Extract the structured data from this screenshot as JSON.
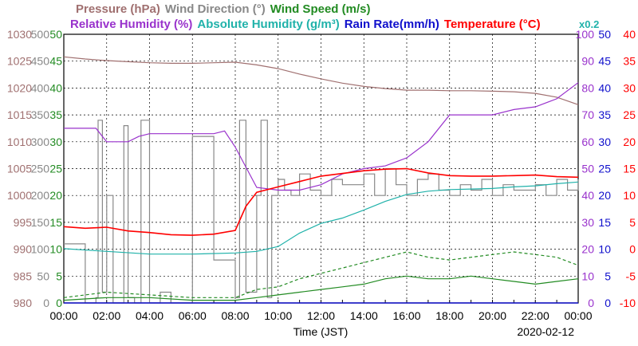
{
  "chart_data": {
    "type": "line",
    "date": "2020-02-12",
    "xlabel": "Time (JST)",
    "x_ticks": [
      "00:00",
      "02:00",
      "04:00",
      "06:00",
      "08:00",
      "10:00",
      "12:00",
      "14:00",
      "16:00",
      "18:00",
      "20:00",
      "22:00",
      "00:00"
    ],
    "scale_note": "x0.2",
    "axes": [
      {
        "name": "Pressure (hPa)",
        "color": "#a07070",
        "ticks": [
          "1030",
          "1025",
          "1020",
          "1015",
          "1010",
          "1005",
          "1000",
          "995",
          "990",
          "985",
          "980"
        ],
        "range": [
          980,
          1030
        ]
      },
      {
        "name": "Wind Direction (°)",
        "color": "#888888",
        "ticks": [
          "500",
          "450",
          "400",
          "350",
          "300",
          "250",
          "200",
          "150",
          "100",
          "50",
          "0"
        ],
        "range": [
          0,
          500
        ]
      },
      {
        "name": "Wind Speed (m/s)",
        "color": "#228b22",
        "ticks": [
          "50",
          "45",
          "40",
          "35",
          "30",
          "25",
          "20",
          "15",
          "10",
          "5",
          "0"
        ],
        "range": [
          0,
          50
        ]
      },
      {
        "name": "Relative Humidity (%)",
        "color": "#9932cc",
        "ticks": [
          "100",
          "90",
          "80",
          "70",
          "60",
          "50",
          "40",
          "30",
          "20",
          "10",
          "0"
        ],
        "range": [
          0,
          100
        ]
      },
      {
        "name": "Rain Rate(mm/h)",
        "color": "#1010cc",
        "ticks": [
          "50",
          "45",
          "40",
          "35",
          "30",
          "25",
          "20",
          "15",
          "10",
          "5",
          "0"
        ],
        "range": [
          0,
          50
        ]
      },
      {
        "name": "Temperature (°C)",
        "color": "#ff0000",
        "ticks": [
          "40",
          "35",
          "30",
          "25",
          "20",
          "15",
          "10",
          "5",
          "0",
          "-5",
          "-10"
        ],
        "range": [
          -10,
          40
        ]
      }
    ],
    "title_segments": [
      {
        "text": "Pressure (hPa)",
        "color": "#a07070"
      },
      {
        "text": "Wind Direction (°)",
        "color": "#888888"
      },
      {
        "text": "Wind Speed (m/s)",
        "color": "#228b22"
      }
    ],
    "subtitle_segments": [
      {
        "text": "Relative Humidity (%)",
        "color": "#9932cc"
      },
      {
        "text": "Absolute Humidity (g/m³)",
        "color": "#20b2aa"
      },
      {
        "text": "Rain Rate(mm/h)",
        "color": "#1010cc"
      },
      {
        "text": "Temperature (°C)",
        "color": "#ff0000"
      }
    ],
    "series": [
      {
        "name": "Pressure",
        "color": "#a07070",
        "unit": "hPa",
        "x": [
          0,
          1,
          2,
          3,
          4,
          5,
          6,
          7,
          8,
          9,
          10,
          11,
          12,
          13,
          14,
          15,
          16,
          17,
          18,
          19,
          20,
          21,
          22,
          23,
          24
        ],
        "values": [
          1025.8,
          1025.4,
          1025.1,
          1024.9,
          1024.7,
          1024.6,
          1024.6,
          1024.7,
          1024.8,
          1024.3,
          1023.6,
          1022.6,
          1021.7,
          1020.9,
          1020.3,
          1019.9,
          1019.6,
          1019.6,
          1019.5,
          1019.5,
          1019.4,
          1019.3,
          1019.0,
          1018.3,
          1016.9
        ]
      },
      {
        "name": "Wind Direction",
        "color": "#888888",
        "unit": "°",
        "x": [
          0,
          0.5,
          1,
          1.5,
          1.6,
          1.8,
          2,
          2.3,
          2.8,
          3,
          3.3,
          3.6,
          4,
          4.5,
          5,
          5.5,
          6,
          7,
          7.5,
          8,
          8.2,
          8.5,
          9,
          9.2,
          9.5,
          9.7,
          10,
          10.3,
          10.6,
          11,
          11.5,
          12,
          12.5,
          13,
          13.5,
          14,
          14.5,
          15,
          15.5,
          16,
          16.5,
          17,
          17.5,
          18,
          18.5,
          19,
          19.5,
          20,
          20.5,
          21,
          21.5,
          22,
          22.5,
          23,
          23.5,
          24
        ],
        "values": [
          110,
          110,
          0,
          10,
          340,
          20,
          200,
          0,
          330,
          10,
          0,
          340,
          0,
          20,
          0,
          0,
          310,
          80,
          80,
          10,
          340,
          20,
          200,
          340,
          10,
          200,
          230,
          210,
          200,
          240,
          210,
          200,
          230,
          220,
          220,
          240,
          200,
          250,
          220,
          200,
          230,
          240,
          210,
          200,
          220,
          210,
          230,
          200,
          220,
          210,
          210,
          220,
          200,
          230,
          210,
          230
        ]
      },
      {
        "name": "Wind Speed",
        "color": "#228b22",
        "unit": "m/s",
        "x": [
          0,
          2,
          4,
          6,
          8,
          9,
          10,
          11,
          12,
          13,
          14,
          15,
          16,
          17,
          18,
          19,
          20,
          21,
          22,
          23,
          24
        ],
        "values": [
          0.5,
          1,
          1,
          0.5,
          0.5,
          1,
          1.5,
          2,
          2.5,
          3,
          3.5,
          4.5,
          5,
          4.5,
          4.5,
          5,
          4.5,
          4,
          3.5,
          4,
          4.5
        ]
      },
      {
        "name": "Wind Speed (gust)",
        "color": "#228b22",
        "unit": "m/s",
        "dashed": true,
        "x": [
          0,
          2,
          4,
          6,
          8,
          9,
          10,
          11,
          12,
          13,
          14,
          15,
          16,
          17,
          18,
          19,
          20,
          21,
          22,
          23,
          24
        ],
        "values": [
          1,
          2,
          1.5,
          1,
          1,
          2.5,
          3,
          4.5,
          5.5,
          6.5,
          7.5,
          8.5,
          9.5,
          8.5,
          8,
          8.5,
          9,
          9.5,
          9,
          8.5,
          7
        ]
      },
      {
        "name": "Relative Humidity",
        "color": "#9932cc",
        "unit": "%",
        "x": [
          0,
          1.5,
          1.8,
          2,
          3,
          3.5,
          4,
          5,
          6,
          7,
          7.5,
          8,
          9,
          10,
          11,
          12,
          13,
          14,
          15,
          16,
          17,
          18,
          19,
          20,
          21,
          22,
          23,
          24
        ],
        "values": [
          65,
          65,
          62,
          60,
          60,
          62,
          63,
          63,
          63,
          63,
          64,
          58,
          43,
          42,
          42,
          44,
          48,
          50,
          51,
          54,
          60,
          70,
          70,
          70,
          72,
          73,
          76,
          82
        ]
      },
      {
        "name": "Absolute Humidity",
        "color": "#20b2aa",
        "unit": "g/m³",
        "x": [
          0,
          2,
          4,
          6,
          8,
          9,
          10,
          11,
          12,
          13,
          14,
          15,
          16,
          17,
          18,
          19,
          20,
          21,
          22,
          23,
          24
        ],
        "values": [
          10.1,
          9.6,
          9.1,
          9.1,
          9.3,
          9.6,
          10.5,
          13,
          14.8,
          15.8,
          17.3,
          18.9,
          20.2,
          20.8,
          21.1,
          21.2,
          21.3,
          21.6,
          21.8,
          22.2,
          22.5
        ]
      },
      {
        "name": "Rain Rate",
        "color": "#1010cc",
        "unit": "mm/h",
        "x": [
          0,
          24
        ],
        "values": [
          0,
          0
        ]
      },
      {
        "name": "Temperature",
        "color": "#ff0000",
        "unit": "°C",
        "x": [
          0,
          1,
          2,
          3,
          4,
          5,
          6,
          7,
          8,
          8.5,
          9,
          10,
          11,
          12,
          13,
          14,
          15,
          16,
          17,
          18,
          19,
          20,
          21,
          22,
          23,
          24
        ],
        "values": [
          4.2,
          3.9,
          4.1,
          3.4,
          3.1,
          2.7,
          2.6,
          2.8,
          3.5,
          8,
          10.6,
          11.6,
          12.6,
          13.6,
          14.1,
          14.6,
          14.9,
          15.0,
          14.2,
          13.7,
          13.6,
          13.6,
          13.7,
          13.8,
          13.5,
          13.4
        ]
      }
    ]
  }
}
